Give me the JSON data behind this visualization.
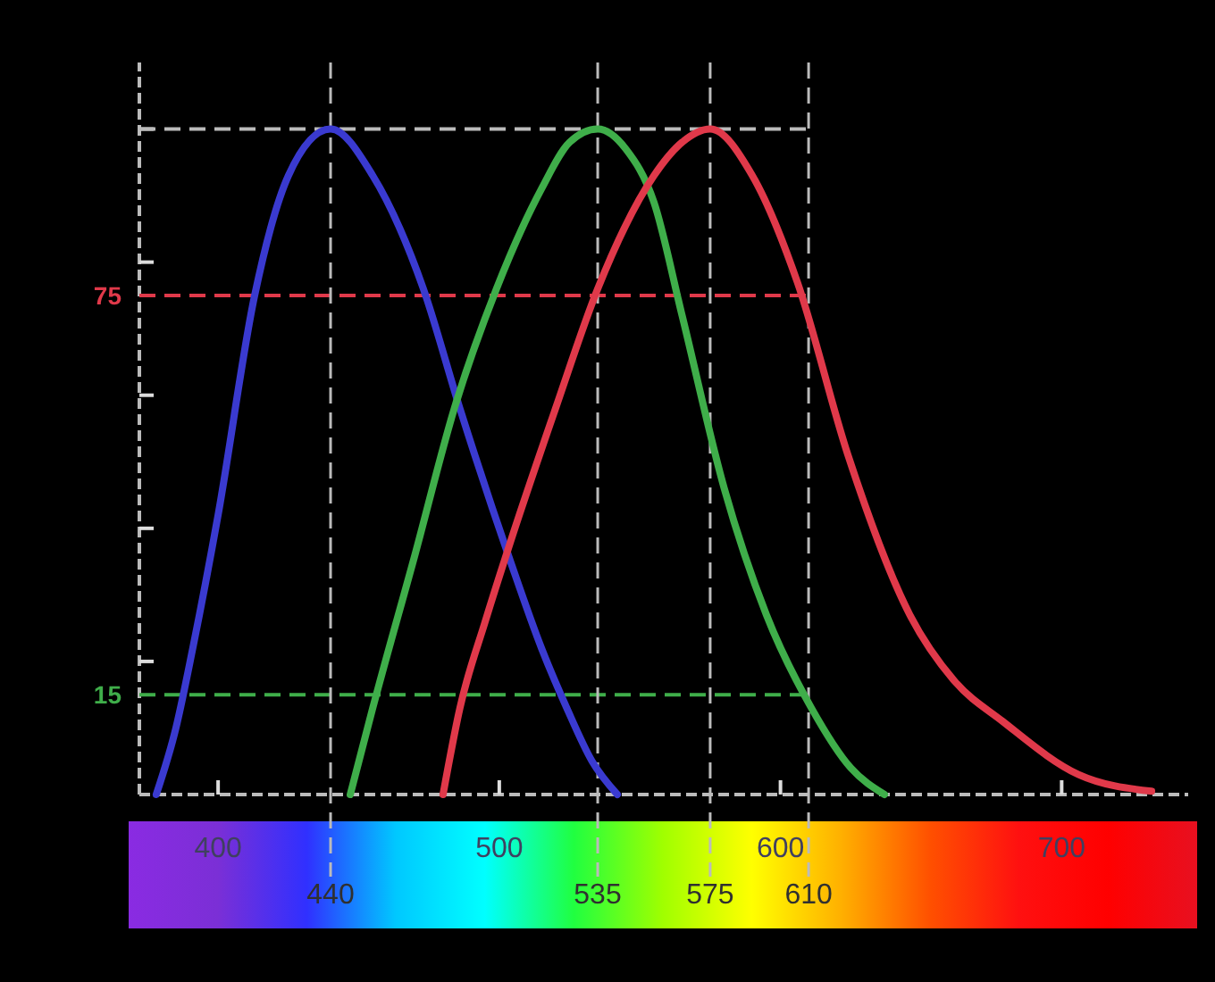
{
  "chart_data": {
    "type": "line",
    "xlim": [
      372,
      745
    ],
    "ylim": [
      0,
      110
    ],
    "xticks": [
      400,
      500,
      600,
      700
    ],
    "yticks": [
      {
        "value": 20,
        "label": null
      },
      {
        "value": 40,
        "label": null
      },
      {
        "value": 60,
        "label": null
      },
      {
        "value": 80,
        "label": null
      },
      {
        "value": 100,
        "label": null
      }
    ],
    "series": [
      {
        "color": "#3a3ad0",
        "x": [
          378,
          385,
          391,
          400,
          413,
          425,
          440,
          455,
          473,
          486,
          504,
          515,
          524,
          533,
          542
        ],
        "values": [
          0,
          10,
          22,
          42,
          75,
          93,
          100,
          93,
          76,
          58,
          35,
          22,
          13,
          5,
          0
        ]
      },
      {
        "color": "#3fae4a",
        "x": [
          447,
          455,
          470,
          484,
          499,
          515,
          525,
          535,
          545,
          555,
          565,
          580,
          595,
          611,
          625,
          637
        ],
        "values": [
          0,
          13,
          36,
          58,
          76,
          91,
          98,
          100,
          97,
          89,
          72,
          46,
          27,
          13,
          4,
          0
        ]
      },
      {
        "color": "#e0394a",
        "x": [
          480,
          486,
          495,
          504,
          520,
          535,
          555,
          565,
          575,
          590,
          606,
          624,
          646,
          662,
          679,
          706,
          732
        ],
        "values": [
          0,
          13,
          26,
          38,
          58,
          76,
          93,
          98,
          100,
          93,
          77,
          51,
          27,
          17,
          11,
          3,
          0.5
        ]
      }
    ],
    "ref_lines": [
      {
        "axis": "y",
        "value": 75,
        "label": "75",
        "color": "#e0394a",
        "line_style": "dashed"
      },
      {
        "axis": "y",
        "value": 15,
        "label": "15",
        "color": "#3fae4a",
        "line_style": "dashed"
      },
      {
        "axis": "y",
        "value": 100,
        "label": null,
        "color": "#bbbbbb",
        "line_style": "dashed"
      },
      {
        "axis": "x",
        "value": 440,
        "label": "440",
        "color": "#bbbbbb",
        "line_style": "dashed"
      },
      {
        "axis": "x",
        "value": 535,
        "label": "535",
        "color": "#bbbbbb",
        "line_style": "dashed"
      },
      {
        "axis": "x",
        "value": 575,
        "label": "575",
        "color": "#bbbbbb",
        "line_style": "dashed"
      },
      {
        "axis": "x",
        "value": 610,
        "label": "610",
        "color": "#bbbbbb",
        "line_style": "dashed"
      }
    ],
    "grid": false,
    "marker": "none",
    "line_style": "solid"
  }
}
